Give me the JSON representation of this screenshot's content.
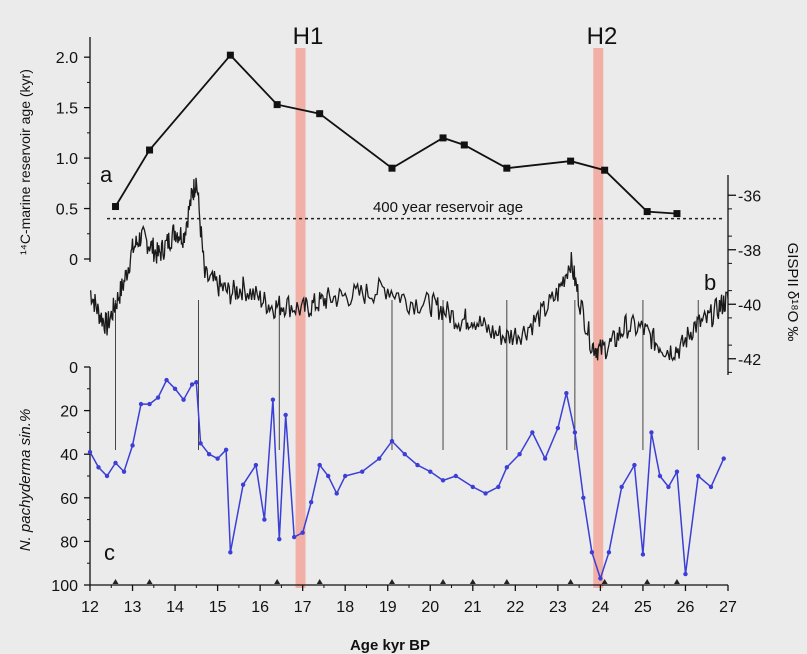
{
  "chart_data": {
    "type": "line",
    "xlabel": "Age kyr BP",
    "xlim": [
      12,
      27
    ],
    "x_ticks": [
      "12",
      "13",
      "14",
      "15",
      "16",
      "17",
      "18",
      "19",
      "20",
      "21",
      "22",
      "23",
      "24",
      "25",
      "26",
      "27"
    ],
    "heinrich_events": [
      {
        "label": "H1",
        "x": 16.95
      },
      {
        "label": "H2",
        "x": 23.95
      }
    ],
    "panels": [
      {
        "id": "a",
        "label": "a",
        "ylabel": "¹⁴C-marine reservoir age (kyr)",
        "ylim": [
          0,
          2.2
        ],
        "y_ticks": [
          "0",
          "0.5",
          "1.0",
          "1.5",
          "2.0"
        ],
        "reference_line": {
          "y": 0.4,
          "label": "400 year reservoir age"
        },
        "series": [
          {
            "x": [
              12.6,
              13.4,
              15.3,
              16.4,
              17.4,
              19.1,
              20.3,
              20.8,
              21.8,
              23.3,
              24.1,
              25.1,
              25.8
            ],
            "y": [
              0.52,
              1.08,
              2.02,
              1.53,
              1.44,
              0.9,
              1.2,
              1.13,
              0.9,
              0.97,
              0.88,
              0.47,
              0.45
            ]
          }
        ]
      },
      {
        "id": "b",
        "label": "b",
        "ylabel": "GISPII δ¹⁸O ‰",
        "ylim": [
          -43,
          -35
        ],
        "y_ticks": [
          "-36",
          "-38",
          "-40",
          "-42"
        ],
        "series": [
          {
            "x": [
              12.0,
              12.2,
              12.4,
              12.6,
              12.8,
              13.0,
              13.2,
              13.4,
              13.6,
              13.8,
              14.0,
              14.2,
              14.4,
              14.5,
              14.7,
              15.0,
              15.3,
              15.6,
              16.0,
              16.3,
              16.6,
              17.0,
              17.3,
              17.6,
              18.0,
              18.5,
              19.0,
              19.5,
              20.0,
              20.3,
              20.7,
              21.0,
              21.4,
              21.8,
              22.2,
              22.6,
              23.0,
              23.3,
              23.5,
              23.8,
              24.0,
              24.3,
              24.6,
              25.0,
              25.3,
              25.6,
              25.9,
              26.2,
              26.5,
              26.8,
              27.0
            ],
            "y": [
              -39.5,
              -40.3,
              -40.8,
              -40.0,
              -39.2,
              -38.0,
              -37.5,
              -37.8,
              -38.2,
              -37.8,
              -37.3,
              -37.5,
              -36.0,
              -35.4,
              -39.0,
              -39.3,
              -39.6,
              -39.4,
              -39.8,
              -40.1,
              -40.0,
              -40.2,
              -40.0,
              -39.8,
              -39.7,
              -39.6,
              -39.4,
              -39.9,
              -40.0,
              -40.2,
              -40.6,
              -40.5,
              -41.0,
              -41.2,
              -41.0,
              -40.4,
              -39.6,
              -38.4,
              -39.8,
              -41.5,
              -41.7,
              -41.4,
              -40.8,
              -40.9,
              -41.4,
              -41.7,
              -41.6,
              -40.8,
              -40.6,
              -40.1,
              -39.8
            ]
          }
        ]
      },
      {
        "id": "c",
        "label": "c",
        "ylabel": "N. pachyderma sin.%",
        "ylim": [
          0,
          100
        ],
        "y_reversed": true,
        "y_ticks": [
          "0",
          "20",
          "40",
          "60",
          "80",
          "100"
        ],
        "series": [
          {
            "x": [
              12.0,
              12.2,
              12.4,
              12.6,
              12.8,
              13.0,
              13.2,
              13.4,
              13.6,
              13.8,
              14.0,
              14.2,
              14.4,
              14.5,
              14.6,
              14.8,
              15.0,
              15.2,
              15.3,
              15.6,
              15.9,
              16.1,
              16.3,
              16.45,
              16.6,
              16.8,
              17.0,
              17.2,
              17.4,
              17.6,
              17.8,
              18.0,
              18.4,
              18.8,
              19.1,
              19.4,
              19.7,
              20.0,
              20.3,
              20.6,
              21.0,
              21.3,
              21.6,
              21.8,
              22.1,
              22.4,
              22.7,
              23.0,
              23.2,
              23.4,
              23.6,
              23.8,
              24.0,
              24.2,
              24.5,
              24.8,
              25.0,
              25.2,
              25.4,
              25.6,
              25.8,
              26.0,
              26.3,
              26.6,
              26.9
            ],
            "y": [
              39,
              46,
              50,
              44,
              48,
              36,
              17,
              17,
              14,
              6,
              10,
              15,
              8,
              7,
              35,
              40,
              42,
              38,
              85,
              54,
              45,
              70,
              15,
              79,
              22,
              78,
              76,
              62,
              45,
              50,
              58,
              50,
              48,
              42,
              34,
              40,
              45,
              48,
              52,
              50,
              55,
              58,
              55,
              46,
              40,
              30,
              42,
              28,
              12,
              30,
              60,
              85,
              97,
              85,
              55,
              45,
              86,
              30,
              50,
              55,
              48,
              95,
              50,
              55,
              42
            ]
          }
        ]
      }
    ]
  }
}
